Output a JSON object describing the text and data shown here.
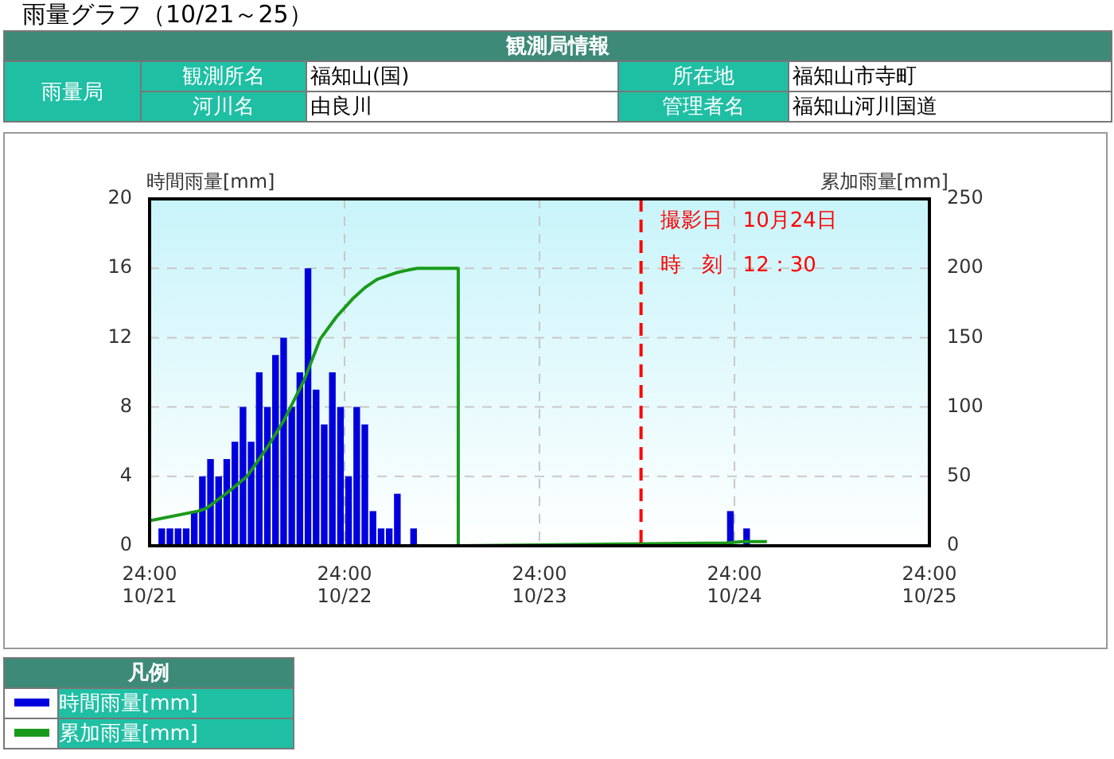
{
  "chart_data": {
    "type": "bar",
    "title": "雨量グラフ（10/21～25）",
    "ylabel": "時間雨量[mm]",
    "y2label": "累加雨量[mm]",
    "legend_title": "凡例",
    "annotations": [
      "観測局情報",
      "雨量局",
      "観測所名",
      "福知山(国)",
      "所在地",
      "福知山市寺町",
      "河川名",
      "由良川",
      "管理者名",
      "福知山河川国道",
      "撮影日　10月24日",
      "時　刻　12：30"
    ],
    "series": [
      {
        "name": "時間雨量[mm]",
        "color": "#0000dd",
        "x": [
          "--10-22T01:30",
          "--10-22T02:30",
          "--10-22T03:30",
          "--10-22T04:30",
          "--10-22T05:30",
          "--10-22T06:30",
          "--10-22T07:30",
          "--10-22T08:30",
          "--10-22T09:30",
          "--10-22T10:30",
          "--10-22T11:30",
          "--10-22T12:30",
          "--10-22T13:30",
          "--10-22T14:30",
          "--10-22T15:30",
          "--10-22T16:30",
          "--10-22T17:30",
          "--10-22T18:30",
          "--10-22T19:30",
          "--10-22T20:30",
          "--10-22T21:30",
          "--10-22T22:30",
          "--10-22T23:30",
          "--10-23T00:30",
          "--10-23T01:30",
          "--10-23T02:30",
          "--10-23T03:30",
          "--10-23T04:30",
          "--10-23T05:30",
          "--10-23T06:30",
          "--10-23T08:30",
          "--10-24T23:30",
          "--10-25T01:30"
        ],
        "values": [
          1,
          1,
          1,
          1,
          2,
          4,
          5,
          4,
          5,
          6,
          8,
          6,
          10,
          8,
          11,
          12,
          8,
          10,
          16,
          9,
          7,
          10,
          8,
          4,
          8,
          7,
          2,
          1,
          1,
          3,
          1,
          2,
          1
        ]
      },
      {
        "name": "累加雨量[mm]",
        "type": "line",
        "axis": "y2",
        "color": "#1a9a1a",
        "x": [
          "--10-22T00:00",
          "--10-22T06:00",
          "--10-22T07:00",
          "--10-22T09:30",
          "--10-22T12:00",
          "--10-22T14:30",
          "--10-22T16:30",
          "--10-22T19:00",
          "--10-22T21:00",
          "--10-22T23:00",
          "--10-23T01:00",
          "--10-23T02:30",
          "--10-23T04:00",
          "--10-23T06:30",
          "--10-23T08:00",
          "--10-23T09:00",
          "--10-23T14:00",
          "--10-23T14:00",
          "--10-24T23:00",
          "--10-25T01:00",
          "--10-25T04:00"
        ],
        "values": [
          18,
          25,
          27,
          38,
          50,
          71,
          90,
          119,
          149,
          165,
          178,
          186,
          192,
          197,
          199,
          200,
          200,
          0,
          2,
          3,
          3
        ]
      }
    ],
    "xlim": [
      "--10-22T00:00",
      "--10-26T00:00"
    ],
    "xticks": [
      {
        "value": "--10-22T00:00",
        "label": "24:00\n10/21"
      },
      {
        "value": "--10-23T00:00",
        "label": "24:00\n10/22"
      },
      {
        "value": "--10-24T00:00",
        "label": "24:00\n10/23"
      },
      {
        "value": "--10-25T00:00",
        "label": "24:00\n10/24"
      },
      {
        "value": "--10-26T00:00",
        "label": "24:00\n10/25"
      }
    ],
    "ylim": [
      0,
      20
    ],
    "yticks": [
      0,
      4,
      8,
      12,
      16,
      20
    ],
    "y2lim": [
      0,
      250
    ],
    "y2ticks": [
      0,
      50,
      100,
      150,
      200,
      250
    ],
    "ref_lines": [
      {
        "axis": "x",
        "value": "--10-24T12:30",
        "color": "#ff0000",
        "line_style": "dashed"
      }
    ],
    "grid": true,
    "legend": "bottom left"
  }
}
